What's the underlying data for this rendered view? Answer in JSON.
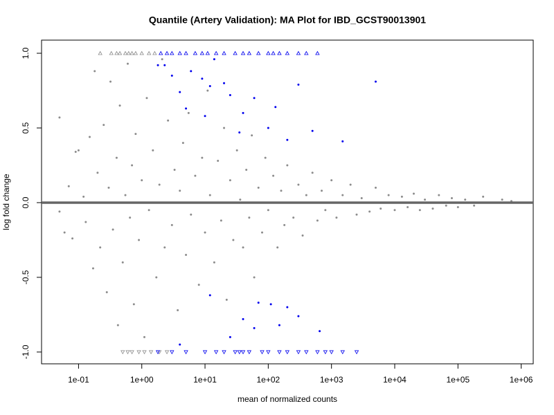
{
  "chart_data": {
    "type": "scatter",
    "title": "Quantile (Artery Validation): MA Plot for IBD_GCST90013901",
    "x_label": "mean of normalized counts",
    "y_label": "log fold change",
    "x_scale": "log",
    "xlim": [
      0.026,
      1550000
    ],
    "ylim": [
      -1.079,
      1.088
    ],
    "xticks": [
      {
        "value": 0.1,
        "label": "1e-01"
      },
      {
        "value": 1,
        "label": "1e+00"
      },
      {
        "value": 10,
        "label": "1e+01"
      },
      {
        "value": 100,
        "label": "1e+02"
      },
      {
        "value": 1000,
        "label": "1e+03"
      },
      {
        "value": 10000,
        "label": "1e+04"
      },
      {
        "value": 100000,
        "label": "1e+05"
      },
      {
        "value": 1000000,
        "label": "1e+06"
      }
    ],
    "yticks": [
      {
        "value": -1,
        "label": "-1.0"
      },
      {
        "value": -0.5,
        "label": "-0.5"
      },
      {
        "value": 0,
        "label": "0.0"
      },
      {
        "value": 0.5,
        "label": "0.5"
      },
      {
        "value": 1,
        "label": "1.0"
      }
    ],
    "hline": {
      "value": 0,
      "color": "#666666"
    },
    "series": [
      {
        "color": "#8c8c8c",
        "marker": "circle",
        "x": [
          0.05,
          0.05,
          0.06,
          0.07,
          0.08,
          0.09,
          0.1,
          0.12,
          0.13,
          0.15,
          0.17,
          0.18,
          0.2,
          0.22,
          0.25,
          0.28,
          0.3,
          0.32,
          0.35,
          0.4,
          0.42,
          0.45,
          0.5,
          0.55,
          0.6,
          0.65,
          0.7,
          0.75,
          0.8,
          0.9,
          1,
          1.1,
          1.2,
          1.3,
          1.5,
          1.7,
          1.9,
          2.1,
          2.3,
          2.6,
          3,
          3.3,
          3.7,
          4,
          4.5,
          5,
          5.5,
          6,
          7,
          8,
          9,
          10,
          11,
          12,
          14,
          16,
          18,
          20,
          22,
          25,
          28,
          32,
          36,
          40,
          45,
          50,
          55,
          60,
          70,
          80,
          90,
          100,
          120,
          140,
          160,
          180,
          200,
          250,
          300,
          350,
          400,
          500,
          600,
          700,
          800,
          1000,
          1200,
          1500,
          2000,
          2500,
          3000,
          4000,
          5000,
          6000,
          8000,
          10000,
          13000,
          16000,
          20000,
          25000,
          30000,
          40000,
          50000,
          65000,
          80000,
          100000,
          130000,
          180000,
          250000,
          350000,
          500000,
          700000
        ],
        "y": [
          0.57,
          -0.06,
          -0.2,
          0.11,
          -0.24,
          0.34,
          0.35,
          0.04,
          -0.13,
          0.44,
          -0.44,
          0.88,
          0.2,
          -0.3,
          0.52,
          -0.6,
          0.1,
          0.81,
          -0.18,
          0.3,
          -0.82,
          0.65,
          -0.4,
          0.05,
          0.93,
          -0.1,
          0.25,
          -0.68,
          0.46,
          -0.25,
          0.15,
          -0.9,
          0.7,
          -0.05,
          0.35,
          -0.5,
          0.12,
          0.96,
          -0.3,
          0.55,
          -0.15,
          0.22,
          -0.72,
          0.08,
          0.4,
          -0.35,
          0.6,
          -0.08,
          0.18,
          -0.55,
          0.3,
          -0.2,
          0.75,
          0.05,
          -0.4,
          0.28,
          -0.12,
          0.5,
          -0.65,
          0.15,
          -0.25,
          0.35,
          0.02,
          -0.3,
          0.22,
          -0.1,
          0.45,
          -0.5,
          0.1,
          -0.2,
          0.3,
          -0.05,
          0.18,
          -0.3,
          0.08,
          -0.15,
          0.25,
          -0.1,
          0.12,
          -0.22,
          0.05,
          0.2,
          -0.12,
          0.08,
          -0.05,
          0.15,
          -0.1,
          0.05,
          0.12,
          -0.08,
          0.03,
          -0.06,
          0.1,
          -0.04,
          0.05,
          -0.05,
          0.04,
          -0.03,
          0.06,
          -0.05,
          0.02,
          -0.04,
          0.05,
          -0.02,
          0.03,
          -0.03,
          0.02,
          -0.02,
          0.04,
          0.0,
          0.02,
          0.01
        ]
      },
      {
        "color": "#0000ee",
        "marker": "circle",
        "x": [
          1.8,
          2.3,
          3,
          4,
          5,
          6,
          9,
          10,
          12,
          14,
          20,
          25,
          35,
          40,
          60,
          100,
          130,
          200,
          300,
          500,
          1500,
          5000,
          12,
          25,
          40,
          60,
          70,
          110,
          150,
          200,
          300,
          650,
          4
        ],
        "y": [
          0.92,
          0.92,
          0.85,
          0.74,
          0.63,
          0.88,
          0.83,
          0.58,
          0.78,
          0.96,
          0.8,
          0.72,
          0.47,
          0.6,
          0.7,
          0.5,
          0.64,
          0.42,
          0.79,
          0.48,
          0.41,
          0.81,
          -0.62,
          -0.9,
          -0.78,
          -0.84,
          -0.67,
          -0.68,
          -0.82,
          -0.7,
          -0.76,
          -0.86,
          -0.95
        ]
      },
      {
        "color": "#8c8c8c",
        "marker": "triangle-up",
        "x": [
          0.22,
          0.33,
          0.4,
          0.45,
          0.55,
          0.62,
          0.7,
          0.8,
          1.0,
          1.3,
          1.6
        ],
        "y": [
          1,
          1,
          1,
          1,
          1,
          1,
          1,
          1,
          1,
          1,
          1
        ]
      },
      {
        "color": "#0000ee",
        "marker": "triangle-up",
        "x": [
          2,
          2.5,
          3,
          4,
          5,
          7,
          9,
          11,
          15,
          20,
          30,
          40,
          50,
          70,
          100,
          120,
          150,
          200,
          300,
          400,
          600
        ],
        "y": [
          1,
          1,
          1,
          1,
          1,
          1,
          1,
          1,
          1,
          1,
          1,
          1,
          1,
          1,
          1,
          1,
          1,
          1,
          1,
          1,
          1
        ]
      },
      {
        "color": "#8c8c8c",
        "marker": "triangle-down",
        "x": [
          0.5,
          0.6,
          0.7,
          0.9,
          1.1,
          1.4,
          1.9,
          2.5
        ],
        "y": [
          -1,
          -1,
          -1,
          -1,
          -1,
          -1,
          -1,
          -1
        ]
      },
      {
        "color": "#0000ee",
        "marker": "triangle-down",
        "x": [
          1.8,
          3,
          5,
          10,
          15,
          20,
          30,
          35,
          40,
          50,
          80,
          100,
          150,
          200,
          300,
          400,
          600,
          800,
          1000,
          1500,
          2500
        ],
        "y": [
          -1,
          -1,
          -1,
          -1,
          -1,
          -1,
          -1,
          -1,
          -1,
          -1,
          -1,
          -1,
          -1,
          -1,
          -1,
          -1,
          -1,
          -1,
          -1,
          -1,
          -1
        ]
      }
    ]
  }
}
